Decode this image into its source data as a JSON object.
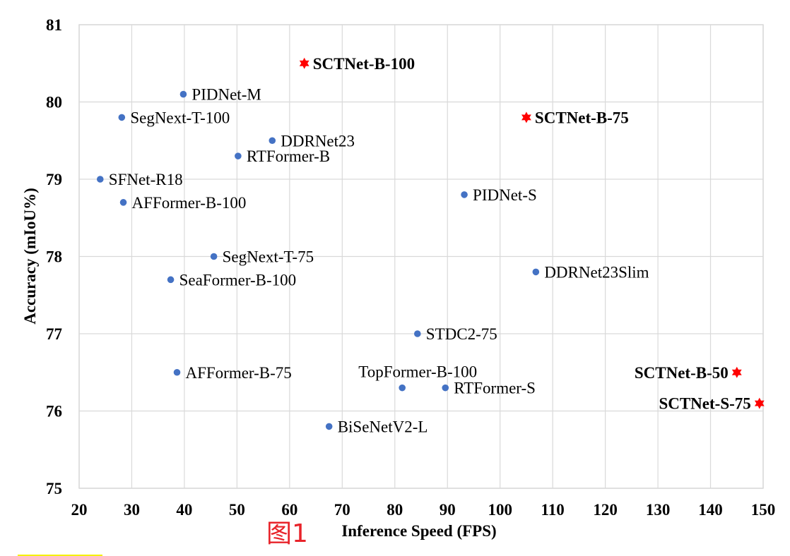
{
  "chart_data": {
    "type": "scatter",
    "xlabel": "Inference Speed (FPS)",
    "ylabel": "Accuracy (mIoU%)",
    "xlim": [
      20,
      150
    ],
    "ylim": [
      75,
      81
    ],
    "xticks": [
      20,
      30,
      40,
      50,
      60,
      70,
      80,
      90,
      100,
      110,
      120,
      130,
      140,
      150
    ],
    "yticks": [
      75,
      76,
      77,
      78,
      79,
      80,
      81
    ],
    "grid": true,
    "colors": {
      "baseline": "#4472c4",
      "ours": "#ff0000"
    },
    "points": [
      {
        "label": "SCTNet-B-100",
        "x": 62.8,
        "y": 80.5,
        "ours": true
      },
      {
        "label": "PIDNet-M",
        "x": 39.8,
        "y": 80.1,
        "ours": false
      },
      {
        "label": "SegNext-T-100",
        "x": 28.1,
        "y": 79.8,
        "ours": false
      },
      {
        "label": "DDRNet23",
        "x": 56.7,
        "y": 79.5,
        "ours": false
      },
      {
        "label": "RTFormer-B",
        "x": 50.2,
        "y": 79.3,
        "ours": false
      },
      {
        "label": "SFNet-R18",
        "x": 24.0,
        "y": 79.0,
        "ours": false
      },
      {
        "label": "AFFormer-B-100",
        "x": 28.4,
        "y": 78.7,
        "ours": false
      },
      {
        "label": "SCTNet-B-75",
        "x": 105.0,
        "y": 79.8,
        "ours": true
      },
      {
        "label": "PIDNet-S",
        "x": 93.2,
        "y": 78.8,
        "ours": false
      },
      {
        "label": "SegNext-T-75",
        "x": 45.6,
        "y": 78.0,
        "ours": false
      },
      {
        "label": "SeaFormer-B-100",
        "x": 37.4,
        "y": 77.7,
        "ours": false
      },
      {
        "label": "DDRNet23Slim",
        "x": 106.8,
        "y": 77.8,
        "ours": false
      },
      {
        "label": "STDC2-75",
        "x": 84.3,
        "y": 77.0,
        "ours": false
      },
      {
        "label": "AFFormer-B-75",
        "x": 38.6,
        "y": 76.5,
        "ours": false
      },
      {
        "label": "TopFormer-B-100",
        "x": 81.4,
        "y": 76.3,
        "ours": false
      },
      {
        "label": "RTFormer-S",
        "x": 89.6,
        "y": 76.3,
        "ours": false
      },
      {
        "label": "BiSeNetV2-L",
        "x": 67.5,
        "y": 75.8,
        "ours": false
      },
      {
        "label": "SCTNet-B-50",
        "x": 145.0,
        "y": 76.5,
        "ours": true
      },
      {
        "label": "SCTNet-S-75",
        "x": 149.3,
        "y": 76.1,
        "ours": true
      }
    ]
  },
  "annotation": "图1"
}
